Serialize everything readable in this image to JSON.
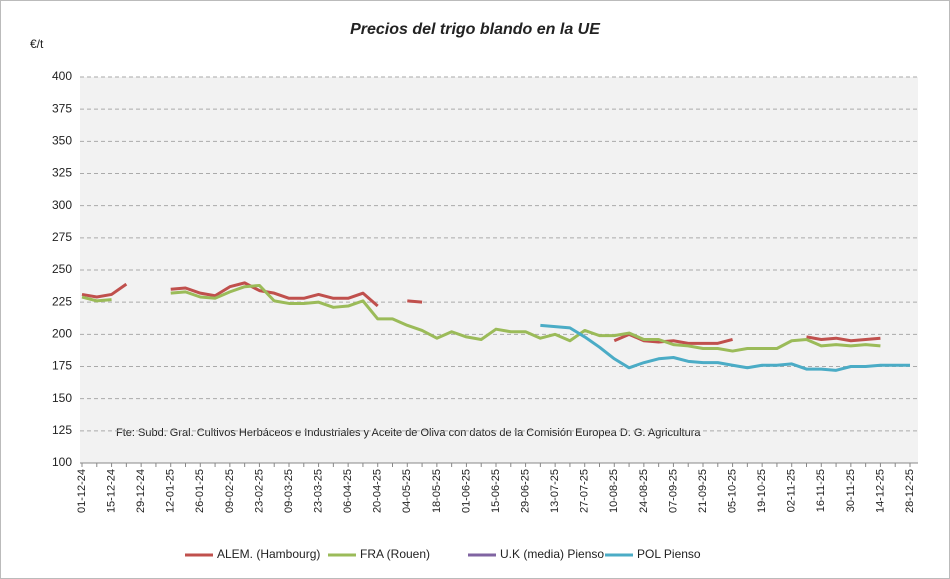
{
  "chart_data": {
    "type": "line",
    "title": "Precios del trigo blando en la UE",
    "y_label": "€/t",
    "annotation": "Fte: Subd. Gral. Cultivos Herbáceos e Industriales y Aceite de Oliva con  datos de la Comisión Europea D. G. Agricultura",
    "categories": [
      "01-12-24",
      null,
      "15-12-24",
      null,
      "29-12-24",
      null,
      "12-01-25",
      null,
      "26-01-25",
      null,
      "09-02-25",
      null,
      "23-02-25",
      null,
      "09-03-25",
      null,
      "23-03-25",
      null,
      "06-04-25",
      null,
      "20-04-25",
      null,
      "04-05-25",
      null,
      "18-05-25",
      null,
      "01-06-25",
      null,
      "15-06-25",
      null,
      "29-06-25",
      null,
      "13-07-25",
      null,
      "27-07-25",
      null,
      "10-08-25",
      null,
      "24-08-25",
      null,
      "07-09-25",
      null,
      "21-09-25",
      null,
      "05-10-25",
      null,
      "19-10-25",
      null,
      "02-11-25",
      null,
      "16-11-25",
      null,
      "30-11-25",
      null,
      "14-12-25",
      null,
      "28-12-25"
    ],
    "series": [
      {
        "name": "ALEM. (Hambourg)",
        "color": "#c0504d",
        "values": [
          231,
          229,
          231,
          239,
          null,
          null,
          235,
          236,
          232,
          230,
          237,
          240,
          234,
          232,
          228,
          228,
          231,
          228,
          228,
          232,
          222,
          null,
          226,
          225,
          null,
          null,
          null,
          null,
          null,
          null,
          null,
          null,
          null,
          null,
          null,
          null,
          195,
          200,
          195,
          194,
          195,
          193,
          193,
          193,
          196,
          null,
          null,
          null,
          null,
          198,
          196,
          197,
          195,
          196,
          197,
          null,
          null
        ]
      },
      {
        "name": "FRA (Rouen)",
        "color": "#9bbb59",
        "values": [
          229,
          226,
          227,
          null,
          null,
          null,
          232,
          233,
          229,
          228,
          233,
          237,
          238,
          226,
          224,
          224,
          225,
          221,
          222,
          226,
          212,
          212,
          207,
          203,
          197,
          202,
          198,
          196,
          204,
          202,
          202,
          197,
          200,
          195,
          203,
          199,
          199,
          201,
          196,
          196,
          192,
          191,
          189,
          189,
          187,
          189,
          189,
          189,
          195,
          196,
          191,
          192,
          191,
          192,
          191,
          null,
          null
        ]
      },
      {
        "name": "U.K (media) Pienso",
        "color": "#8064a2",
        "values": [
          null,
          null,
          null,
          null,
          null,
          null,
          null,
          null,
          null,
          null,
          null,
          null,
          null,
          null,
          null,
          null,
          null,
          null,
          null,
          null,
          null,
          null,
          null,
          null,
          null,
          null,
          null,
          null,
          null,
          null,
          null,
          null,
          null,
          null,
          null,
          null,
          null,
          null,
          null,
          null,
          null,
          null,
          null,
          null,
          null,
          null,
          null,
          null,
          null,
          null,
          null,
          null,
          null,
          null,
          null,
          null,
          null
        ]
      },
      {
        "name": "POL  Pienso",
        "color": "#4bacc6",
        "values": [
          null,
          null,
          null,
          null,
          null,
          null,
          null,
          null,
          null,
          null,
          null,
          null,
          null,
          null,
          null,
          null,
          null,
          null,
          null,
          null,
          null,
          null,
          null,
          null,
          null,
          null,
          null,
          null,
          null,
          null,
          null,
          207,
          206,
          205,
          198,
          190,
          181,
          174,
          178,
          181,
          182,
          179,
          178,
          178,
          176,
          174,
          176,
          176,
          177,
          173,
          173,
          172,
          175,
          175,
          176,
          176,
          176
        ]
      }
    ],
    "ylim": [
      100,
      400
    ],
    "yticks": [
      100,
      125,
      150,
      175,
      200,
      225,
      250,
      275,
      300,
      325,
      350,
      375,
      400
    ],
    "grid": true
  }
}
